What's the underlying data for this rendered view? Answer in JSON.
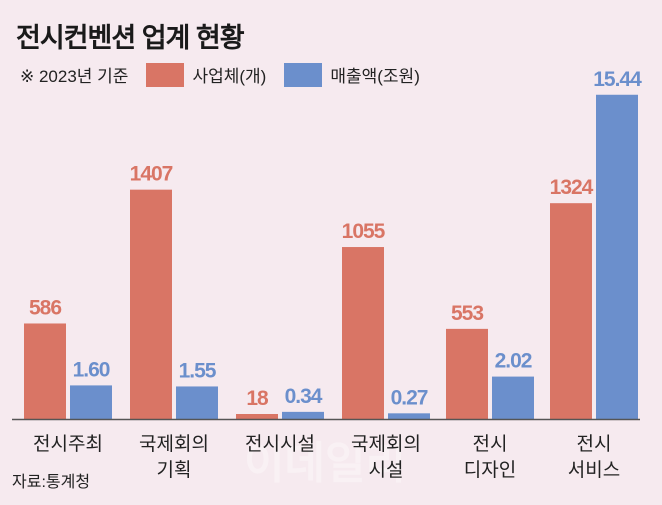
{
  "chart_data": {
    "type": "bar",
    "title": "전시컨벤션 업계 현황",
    "note": "※ 2023년 기준",
    "source": "자료:통계청",
    "watermark": "이데일리",
    "categories": [
      [
        "전시주최"
      ],
      [
        "국제회의",
        "기획"
      ],
      [
        "전시시설"
      ],
      [
        "국제회의",
        "시설"
      ],
      [
        "전시",
        "디자인"
      ],
      [
        "전시",
        "서비스"
      ]
    ],
    "series": [
      {
        "name": "사업체(개)",
        "color": "#d97565",
        "values": [
          586,
          1407,
          18,
          1055,
          553,
          1324
        ],
        "labels": [
          "586",
          "1407",
          "18",
          "1055",
          "553",
          "1324"
        ]
      },
      {
        "name": "매출액(조원)",
        "color": "#6b8fcc",
        "values": [
          1.6,
          1.55,
          0.34,
          0.27,
          2.02,
          15.44
        ],
        "labels": [
          "1.60",
          "1.55",
          "0.34",
          "0.27",
          "2.02",
          "15.44"
        ]
      }
    ],
    "legend": "top-left",
    "grid": false
  }
}
